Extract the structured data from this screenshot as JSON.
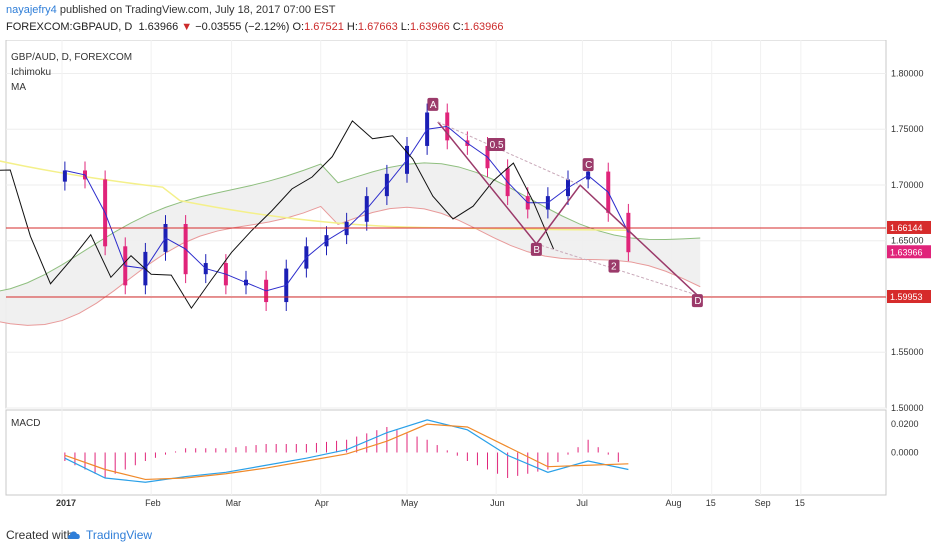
{
  "header": {
    "username": "nayajefry4",
    "published": "published on TradingView.com, July 18, 2017 07:00 EST",
    "symbol": "FOREXCOM:GBPAUD, D",
    "last": "1.63966",
    "arrow": "▼",
    "change": "−0.03555 (−2.12%)",
    "o_label": "O:",
    "o_val": "1.67521",
    "h_label": "H:",
    "h_val": "1.67663",
    "l_label": "L:",
    "l_val": "1.63966",
    "c_label": "C:",
    "c_val": "1.63966"
  },
  "legend": {
    "line1": "GBP/AUD, D, FOREXCOM",
    "line2": "Ichimoku",
    "line3": "MA",
    "macd": "MACD"
  },
  "footer": {
    "created_with": "Created with",
    "brand": "TradingView"
  },
  "colors": {
    "bull": "#1b1fb5",
    "bear": "#e0247a",
    "tenkan": "#2c2ccc",
    "kijun": "#e8a58a",
    "chikou": "#111111",
    "ma": "#f4f08a",
    "cloud_green": "#8fbf7f",
    "cloud_red": "#e89a9a",
    "hline": "#d62b2b",
    "pattern": "#9b3a6a",
    "macd": "#2aa0e8",
    "signal": "#f08a2a",
    "hist": "#e0247a"
  },
  "chart_data": {
    "type": "line",
    "title": "GBP/AUD, D, FOREXCOM",
    "x_ticks": [
      "2017",
      "Feb",
      "Mar",
      "Apr",
      "May",
      "Jun",
      "Jul",
      "Aug",
      "15",
      "Sep",
      "15"
    ],
    "y_ticks": [
      "1.80000",
      "1.75000",
      "1.70000",
      "1.65000",
      "1.60000",
      "1.55000",
      "1.50000"
    ],
    "ylim": [
      1.5,
      1.83
    ],
    "price_labels": [
      {
        "text": "1.66144",
        "value": 1.66144
      },
      {
        "text": "1.63966",
        "value": 1.63966
      },
      {
        "text": "1.59953",
        "value": 1.59953
      }
    ],
    "horizontal_lines": [
      1.66144,
      1.59953
    ],
    "pattern_labels": [
      {
        "text": "A",
        "x": "May 10",
        "y": 1.77
      },
      {
        "text": "B",
        "x": "Jun 15",
        "y": 1.64
      },
      {
        "text": "C",
        "x": "Jul 3",
        "y": 1.716
      },
      {
        "text": "D",
        "x": "Aug 10",
        "y": 1.594
      },
      {
        "text": "0.5",
        "x": "Jun 1",
        "y": 1.734
      },
      {
        "text": "2",
        "x": "Jul 12",
        "y": 1.625
      }
    ],
    "series": [
      {
        "name": "Close",
        "x": [
          "Jan 2",
          "Jan 9",
          "Jan 16",
          "Jan 23",
          "Jan 30",
          "Feb 6",
          "Feb 13",
          "Feb 20",
          "Feb 27",
          "Mar 6",
          "Mar 13",
          "Mar 20",
          "Mar 27",
          "Apr 3",
          "Apr 10",
          "Apr 17",
          "Apr 24",
          "May 1",
          "May 8",
          "May 15",
          "May 22",
          "May 29",
          "Jun 5",
          "Jun 12",
          "Jun 19",
          "Jun 26",
          "Jul 3",
          "Jul 10",
          "Jul 17"
        ],
        "y": [
          1.713,
          1.705,
          1.645,
          1.61,
          1.64,
          1.665,
          1.62,
          1.63,
          1.61,
          1.615,
          1.595,
          1.625,
          1.645,
          1.655,
          1.667,
          1.69,
          1.71,
          1.735,
          1.765,
          1.74,
          1.735,
          1.715,
          1.69,
          1.678,
          1.69,
          1.705,
          1.712,
          1.675,
          1.6397
        ]
      },
      {
        "name": "MACD",
        "x": [
          "Jan 2",
          "Jan 16",
          "Jan 30",
          "Feb 13",
          "Feb 27",
          "Mar 13",
          "Mar 27",
          "Apr 10",
          "Apr 24",
          "May 8",
          "May 22",
          "Jun 5",
          "Jun 19",
          "Jul 3",
          "Jul 17"
        ],
        "y": [
          -0.004,
          -0.018,
          -0.021,
          -0.017,
          -0.014,
          -0.009,
          -0.004,
          0.002,
          0.014,
          0.023,
          0.016,
          -0.002,
          -0.014,
          -0.006,
          -0.012
        ]
      },
      {
        "name": "Signal",
        "x": [
          "Jan 2",
          "Jan 16",
          "Jan 30",
          "Feb 13",
          "Feb 27",
          "Mar 13",
          "Mar 27",
          "Apr 10",
          "Apr 24",
          "May 8",
          "May 22",
          "Jun 5",
          "Jun 19",
          "Jul 3",
          "Jul 17"
        ],
        "y": [
          -0.002,
          -0.012,
          -0.019,
          -0.018,
          -0.015,
          -0.011,
          -0.006,
          -0.001,
          0.008,
          0.02,
          0.018,
          0.004,
          -0.01,
          -0.009,
          -0.008
        ]
      }
    ],
    "macd_ticks": [
      "0.0200",
      "0.0000"
    ],
    "macd_ylim": [
      -0.03,
      0.03
    ],
    "grid": true
  }
}
